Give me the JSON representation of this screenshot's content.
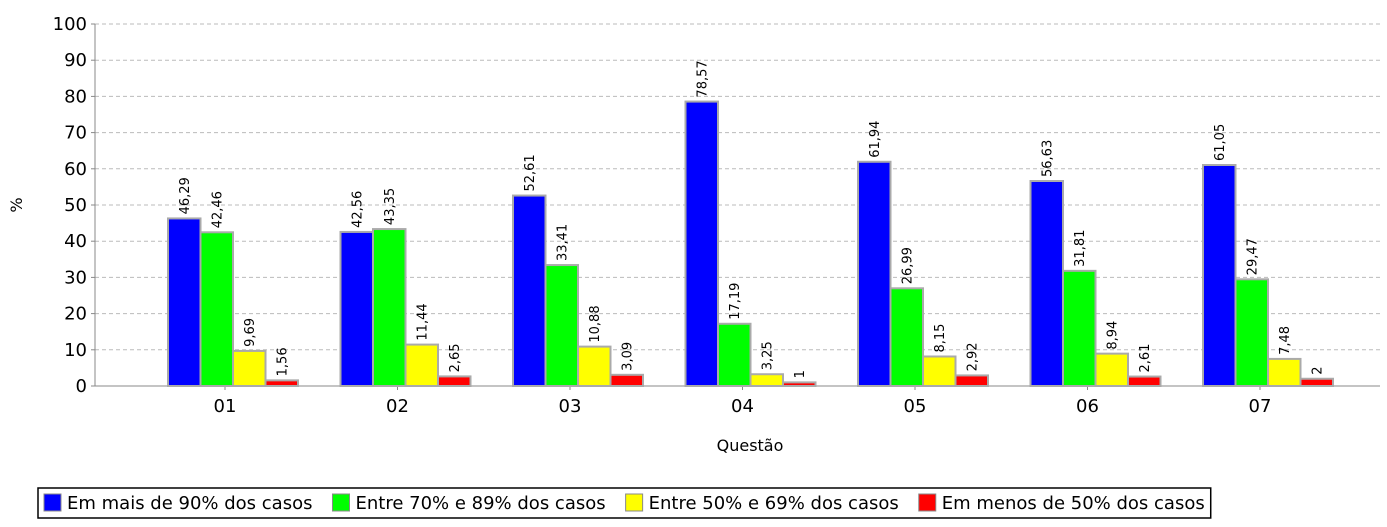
{
  "chart_data": {
    "type": "bar",
    "categories": [
      "01",
      "02",
      "03",
      "04",
      "05",
      "06",
      "07"
    ],
    "series": [
      {
        "name": "Em mais de 90% dos casos",
        "color": "#0000ff",
        "values": [
          46.29,
          42.56,
          52.61,
          78.57,
          61.94,
          56.63,
          61.05
        ],
        "value_labels": [
          "46,29",
          "42,56",
          "52,61",
          "78,57",
          "61,94",
          "56,63",
          "61,05"
        ]
      },
      {
        "name": "Entre 70% e 89% dos casos",
        "color": "#00ff00",
        "values": [
          42.46,
          43.35,
          33.41,
          17.19,
          26.99,
          31.81,
          29.47
        ],
        "value_labels": [
          "42,46",
          "43,35",
          "33,41",
          "17,19",
          "26,99",
          "31,81",
          "29,47"
        ]
      },
      {
        "name": "Entre 50% e 69% dos casos",
        "color": "#ffff00",
        "values": [
          9.69,
          11.44,
          10.88,
          3.25,
          8.15,
          8.94,
          7.48
        ],
        "value_labels": [
          "9,69",
          "11,44",
          "10,88",
          "3,25",
          "8,15",
          "8,94",
          "7,48"
        ]
      },
      {
        "name": "Em menos de 50% dos casos",
        "color": "#ff0000",
        "values": [
          1.56,
          2.65,
          3.09,
          1,
          2.92,
          2.61,
          2
        ],
        "value_labels": [
          "1,56",
          "2,65",
          "3,09",
          "1",
          "2,92",
          "2,61",
          "2"
        ]
      }
    ],
    "x_label": "Questão",
    "y_label": "%",
    "ylim": [
      0,
      100
    ],
    "yticks": [
      0,
      10,
      20,
      30,
      40,
      50,
      60,
      70,
      80,
      90,
      100
    ],
    "grid": true,
    "legend": "bottom"
  }
}
